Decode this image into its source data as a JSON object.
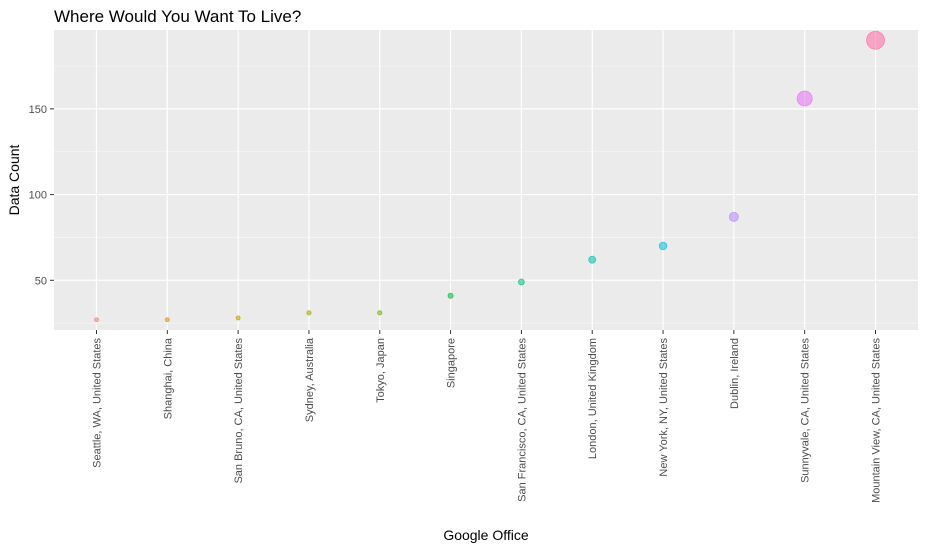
{
  "chart_data": {
    "type": "scatter",
    "title": "Where Would You Want To Live?",
    "xlabel": "Google Office",
    "ylabel": "Data Count",
    "categories": [
      "Seattle, WA, United States",
      "Shanghai, China",
      "San Bruno, CA, United States",
      "Sydney, Australia",
      "Tokyo, Japan",
      "Singapore",
      "San Francisco, CA, United States",
      "London, United Kingdom",
      "New York, NY, United States",
      "Dublin, Ireland",
      "Sunnyvale, CA, United States",
      "Mountain View, CA, United States"
    ],
    "values": [
      27,
      27,
      28,
      31,
      31,
      41,
      49,
      62,
      70,
      87,
      156,
      190
    ],
    "colors": [
      "#F8766D",
      "#E58700",
      "#C99800",
      "#A3A500",
      "#6BB100",
      "#00BA38",
      "#00BF7D",
      "#00C0AF",
      "#00BCD8",
      "#B983FF",
      "#E76BF3",
      "#FF67A4"
    ],
    "ylim": [
      21,
      196
    ],
    "yticks": [
      50,
      100,
      150
    ],
    "size_by_value": true,
    "legend": "none",
    "grid": true
  }
}
